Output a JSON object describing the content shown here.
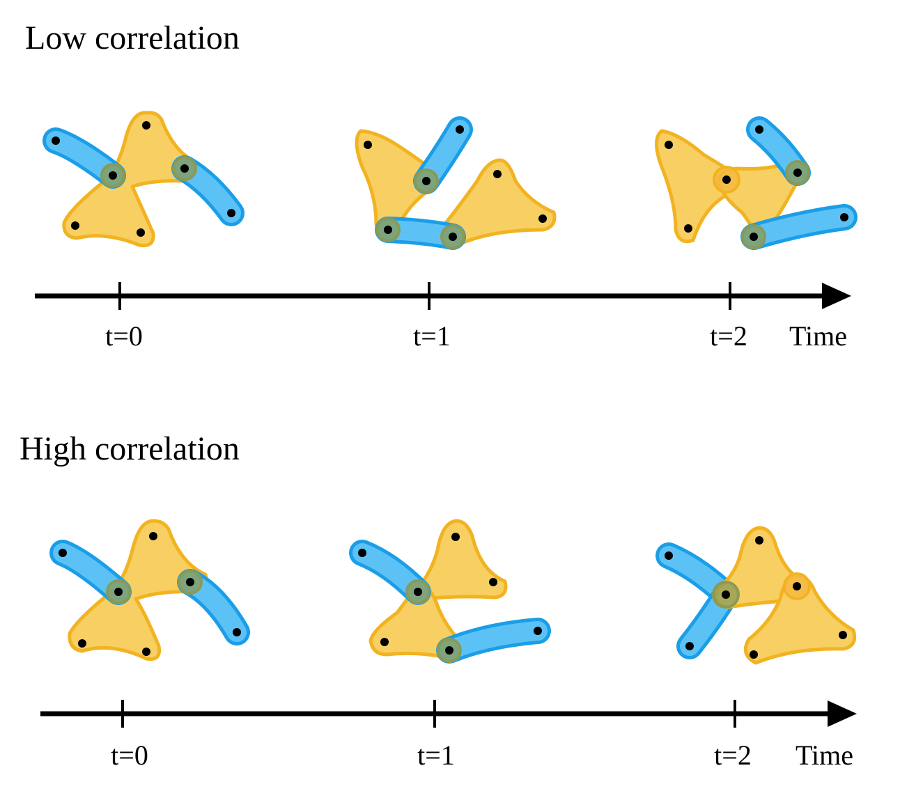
{
  "panels": [
    {
      "id": "low",
      "title": "Low correlation",
      "axis_label": "Time",
      "tick_labels": [
        "t=0",
        "t=1",
        "t=2"
      ]
    },
    {
      "id": "high",
      "title": "High correlation",
      "axis_label": "Time",
      "tick_labels": [
        "t=0",
        "t=1",
        "t=2"
      ]
    }
  ],
  "colors": {
    "triangle_fill": "#f8cf63",
    "triangle_stroke": "#f2b321",
    "edge_stroke": "#1a9ee8",
    "edge_fill": "#5cc2f6",
    "shared_node": "#8a9a55",
    "node": "#000000",
    "axis": "#000000"
  }
}
